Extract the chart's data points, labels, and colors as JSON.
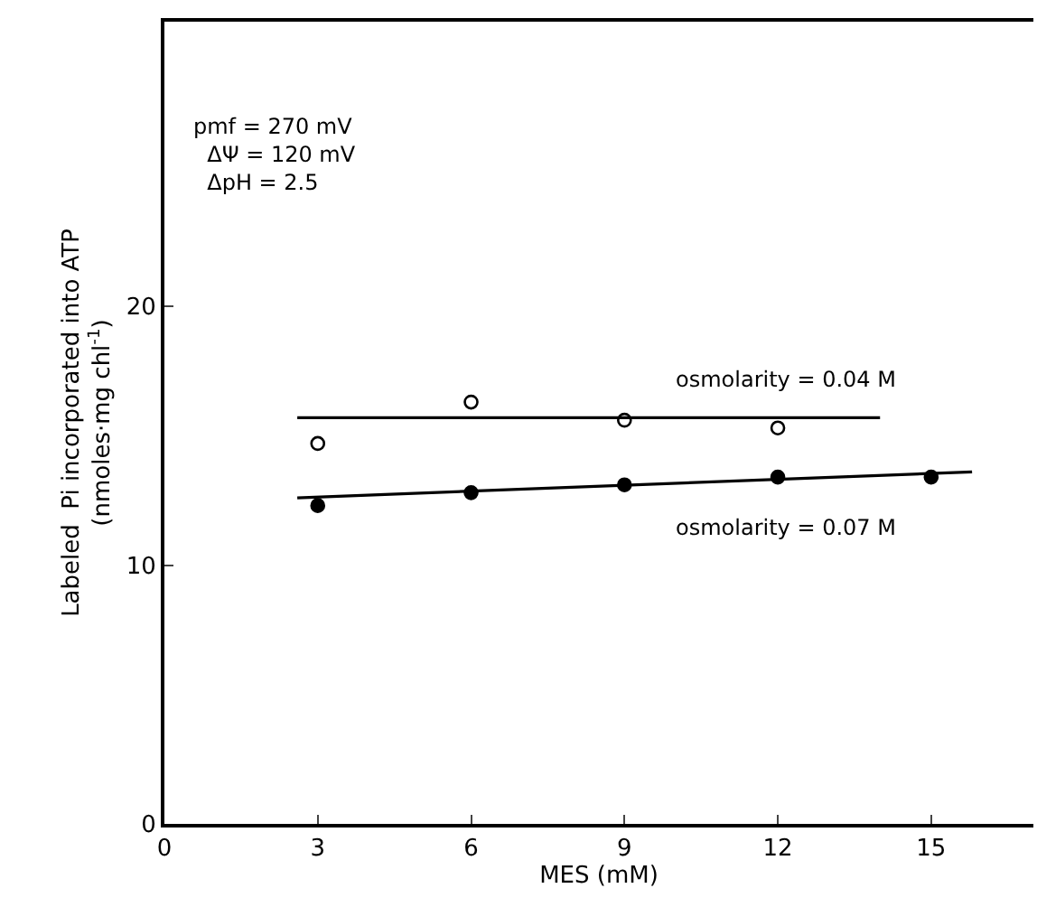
{
  "chart_data": {
    "type": "scatter",
    "xlabel": "MES (mM)",
    "ylabel": "Labeled  Pi incorporated into ATP\n(nmoles·mg chl$^{-1}$)",
    "xlim": [
      0,
      17
    ],
    "xticks": [
      0,
      3,
      6,
      9,
      12,
      15
    ],
    "ylim": [
      0,
      31
    ],
    "yticks": [
      0,
      10,
      20
    ],
    "legend": false,
    "series": [
      {
        "marker": "circle-open",
        "color": "#000000",
        "x": [
          3,
          6,
          9,
          12
        ],
        "values": [
          14.7,
          16.3,
          15.6,
          15.3
        ]
      },
      {
        "type": "line",
        "marker": "none",
        "color": "#000000",
        "x": [
          2.6,
          14
        ],
        "values": [
          15.7,
          15.7
        ]
      },
      {
        "marker": "circle",
        "color": "#000000",
        "x": [
          3,
          6,
          9,
          12,
          15
        ],
        "values": [
          12.3,
          12.8,
          13.1,
          13.4,
          13.4
        ]
      },
      {
        "type": "line",
        "marker": "none",
        "color": "#000000",
        "x": [
          2.6,
          15.8
        ],
        "values": [
          12.6,
          13.6
        ]
      }
    ],
    "annotations": [
      "osmolarity = 0.04 M",
      "osmolarity = 0.07 M",
      "pmf = 270 mV\n  ΔΨ = 120 mV\n  ΔpH = 2.5"
    ]
  }
}
